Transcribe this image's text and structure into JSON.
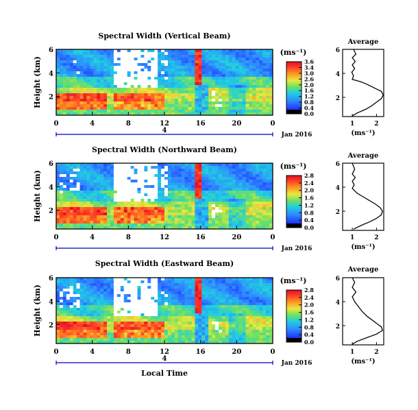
{
  "figure": {
    "x_axis_title": "Local Time",
    "colorbar_unit": "(ms⁻¹)",
    "average_title": "Average",
    "average_unit": "(ms⁻¹)"
  },
  "chart_data": [
    {
      "type": "heatmap",
      "title": "Spectral Width (Vertical Beam)",
      "ylabel": "Height (km)",
      "x_ticks": [
        "0",
        "4",
        "8",
        "12",
        "16",
        "20",
        "0"
      ],
      "y_ticks": [
        "6",
        "4",
        "2"
      ],
      "ylim": [
        0.4,
        6
      ],
      "xlim": [
        0,
        24
      ],
      "date_label": "Jan 2016",
      "day_marker": "4",
      "colorbar": {
        "label": "(ms⁻¹)",
        "ticks": [
          "3.6",
          "3.4",
          "3.0",
          "2.6",
          "2.0",
          "1.6",
          "1.2",
          "0.8",
          "0.4",
          "0.0"
        ],
        "range": [
          0,
          3.6
        ]
      },
      "average": {
        "title": "Average",
        "xlabel": "(ms⁻¹)",
        "x_ticks": [
          "1",
          "2"
        ],
        "y_ticks": [
          "6",
          "4",
          "2"
        ],
        "xlim": [
          0.6,
          2.3
        ],
        "ylim": [
          0.4,
          6
        ],
        "profile": [
          [
            1.05,
            6.0
          ],
          [
            1.15,
            5.6
          ],
          [
            1.0,
            5.3
          ],
          [
            1.12,
            5.0
          ],
          [
            1.0,
            4.7
          ],
          [
            1.1,
            4.4
          ],
          [
            0.98,
            4.1
          ],
          [
            1.05,
            3.8
          ],
          [
            1.0,
            3.5
          ],
          [
            1.35,
            3.3
          ],
          [
            1.6,
            3.1
          ],
          [
            1.8,
            2.9
          ],
          [
            2.0,
            2.7
          ],
          [
            2.2,
            2.5
          ],
          [
            2.28,
            2.2
          ],
          [
            2.2,
            1.9
          ],
          [
            2.0,
            1.6
          ],
          [
            1.8,
            1.3
          ],
          [
            1.55,
            1.0
          ],
          [
            1.2,
            0.7
          ],
          [
            1.0,
            0.45
          ]
        ]
      }
    },
    {
      "type": "heatmap",
      "title": "Spectral Width (Northward Beam)",
      "ylabel": "Height (km)",
      "x_ticks": [
        "0",
        "4",
        "8",
        "12",
        "16",
        "20",
        "0"
      ],
      "y_ticks": [
        "6",
        "4",
        "2"
      ],
      "ylim": [
        0.4,
        6
      ],
      "xlim": [
        0,
        24
      ],
      "date_label": "Jan 2016",
      "day_marker": "",
      "colorbar": {
        "label": "(ms⁻¹)",
        "ticks": [
          "2.8",
          "2.4",
          "2.0",
          "1.6",
          "1.2",
          "0.8",
          "0.4",
          "0.0"
        ],
        "range": [
          0,
          2.8
        ]
      },
      "average": {
        "title": "Average",
        "xlabel": "(ms⁻¹)",
        "x_ticks": [
          "1",
          "2"
        ],
        "y_ticks": [
          "6",
          "4",
          "2"
        ],
        "xlim": [
          0.6,
          2.3
        ],
        "ylim": [
          0.4,
          6
        ],
        "profile": [
          [
            1.0,
            6.0
          ],
          [
            1.1,
            5.5
          ],
          [
            1.0,
            5.1
          ],
          [
            1.12,
            4.8
          ],
          [
            1.0,
            4.5
          ],
          [
            1.08,
            4.2
          ],
          [
            1.0,
            3.9
          ],
          [
            1.2,
            3.5
          ],
          [
            1.45,
            3.2
          ],
          [
            1.7,
            2.9
          ],
          [
            1.95,
            2.6
          ],
          [
            2.15,
            2.3
          ],
          [
            2.25,
            2.0
          ],
          [
            2.2,
            1.7
          ],
          [
            2.0,
            1.4
          ],
          [
            1.7,
            1.1
          ],
          [
            1.35,
            0.8
          ],
          [
            1.05,
            0.5
          ]
        ]
      }
    },
    {
      "type": "heatmap",
      "title": "Spectral Width (Eastward Beam)",
      "ylabel": "Height (km)",
      "x_ticks": [
        "0",
        "4",
        "8",
        "12",
        "16",
        "20",
        "0"
      ],
      "y_ticks": [
        "6",
        "4",
        "2"
      ],
      "ylim": [
        0.4,
        6
      ],
      "xlim": [
        0,
        24
      ],
      "date_label": "Jan 2016",
      "day_marker": "4",
      "colorbar": {
        "label": "(ms⁻¹)",
        "ticks": [
          "2.8",
          "2.4",
          "2.0",
          "1.6",
          "1.2",
          "0.8",
          "0.4",
          "0.0"
        ],
        "range": [
          0,
          2.8
        ]
      },
      "average": {
        "title": "Average",
        "xlabel": "(ms⁻¹)",
        "x_ticks": [
          "1",
          "2"
        ],
        "y_ticks": [
          "6",
          "4",
          "2"
        ],
        "xlim": [
          0.6,
          2.3
        ],
        "ylim": [
          0.4,
          6
        ],
        "profile": [
          [
            1.0,
            6.0
          ],
          [
            1.1,
            5.6
          ],
          [
            1.0,
            5.2
          ],
          [
            1.15,
            4.8
          ],
          [
            1.0,
            4.4
          ],
          [
            1.1,
            4.0
          ],
          [
            1.25,
            3.6
          ],
          [
            1.4,
            3.2
          ],
          [
            1.6,
            2.8
          ],
          [
            1.8,
            2.5
          ],
          [
            2.0,
            2.2
          ],
          [
            2.2,
            1.9
          ],
          [
            2.25,
            1.6
          ],
          [
            2.0,
            1.3
          ],
          [
            1.6,
            1.0
          ],
          [
            1.2,
            0.7
          ],
          [
            1.0,
            0.45
          ]
        ]
      }
    }
  ]
}
